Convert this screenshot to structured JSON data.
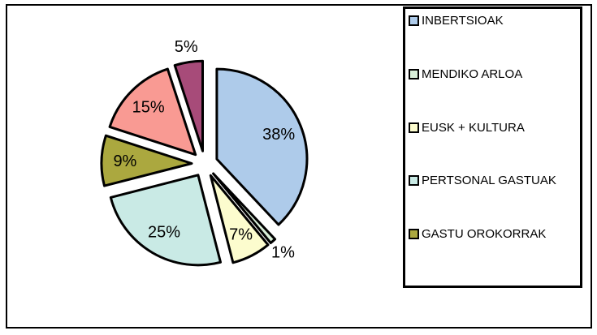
{
  "canvas": {
    "background_color": "#FFFFFF",
    "frame_border_color": "#000000"
  },
  "chart_data": {
    "type": "pie",
    "title": "",
    "exploded": true,
    "start_angle_deg": 0,
    "direction": "clockwise",
    "outline_color": "#000000",
    "slices": [
      {
        "name": "INBERTSIOAK",
        "value": 38,
        "percent_label": "38%",
        "color": "#AECBEA",
        "in_legend": true
      },
      {
        "name": "MENDIKO ARLOA",
        "value": 1,
        "percent_label": "1%",
        "color": "#D9EFD9",
        "in_legend": true
      },
      {
        "name": "EUSK + KULTURA",
        "value": 7,
        "percent_label": "7%",
        "color": "#FCFCCE",
        "in_legend": true
      },
      {
        "name": "PERTSONAL GASTUAK",
        "value": 25,
        "percent_label": "25%",
        "color": "#C9EAE5",
        "in_legend": true
      },
      {
        "name": "GASTU OROKORRAK",
        "value": 9,
        "percent_label": "9%",
        "color": "#ABA83F",
        "in_legend": true
      },
      {
        "name": "",
        "value": 15,
        "percent_label": "15%",
        "color": "#F99A93",
        "in_legend": false
      },
      {
        "name": "",
        "value": 5,
        "percent_label": "5%",
        "color": "#A74B79",
        "in_legend": false
      }
    ],
    "legend": {
      "position": "right",
      "border_color": "#000000",
      "entries": [
        "INBERTSIOAK",
        "MENDIKO ARLOA",
        "EUSK + KULTURA",
        "PERTSONAL GASTUAK",
        "GASTU OROKORRAK"
      ]
    }
  }
}
